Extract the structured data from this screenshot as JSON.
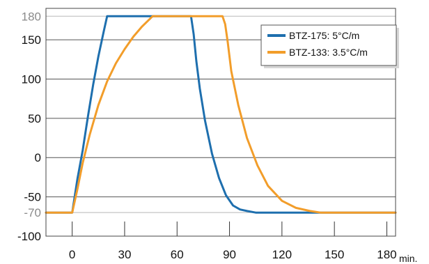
{
  "chart_data": {
    "type": "line",
    "title": "",
    "xlabel": "",
    "ylabel": "",
    "x_unit": "min.",
    "xlim": [
      -15,
      185
    ],
    "ylim": [
      -100,
      190
    ],
    "x_ticks": [
      0,
      30,
      60,
      90,
      120,
      150,
      180
    ],
    "x_tick_labels": [
      "0",
      "30",
      "60",
      "90",
      "120",
      "150",
      "180"
    ],
    "y_ticks": [
      -100,
      -70,
      -50,
      0,
      50,
      100,
      150,
      180
    ],
    "y_tick_labels": [
      "-100",
      "-70",
      "-50",
      "0",
      "50",
      "100",
      "150",
      "180"
    ],
    "y_muted_ticks": [
      -70,
      180
    ],
    "grid": "horizontal",
    "legend_position": "top-right",
    "series": [
      {
        "name": "BTZ-175: 5°C/m",
        "color": "#1e6fae",
        "x": [
          -15,
          0,
          3,
          6,
          9,
          12,
          15,
          18,
          20,
          68,
          69.5,
          71,
          73,
          76,
          80,
          84,
          88,
          92,
          96,
          100,
          105,
          110,
          185
        ],
        "y": [
          -70,
          -70,
          -27,
          9,
          52,
          93,
          129,
          160,
          180,
          180,
          157,
          123,
          88,
          47,
          5,
          -26,
          -48,
          -61,
          -66,
          -68,
          -70,
          -70,
          -70
        ]
      },
      {
        "name": "BTZ-133: 3.5°C/m",
        "color": "#f29d2a",
        "x": [
          -15,
          0,
          3,
          6,
          10,
          15,
          20,
          25,
          30,
          35,
          40,
          46,
          86,
          87.5,
          89,
          91,
          95,
          100,
          106,
          112,
          120,
          128,
          136,
          142,
          185
        ],
        "y": [
          -70,
          -70,
          -40,
          -7,
          29,
          67,
          97,
          120,
          138,
          154,
          167,
          180,
          180,
          170,
          147,
          110,
          67,
          25,
          -10,
          -36,
          -55,
          -64,
          -68,
          -70,
          -70
        ]
      }
    ]
  }
}
